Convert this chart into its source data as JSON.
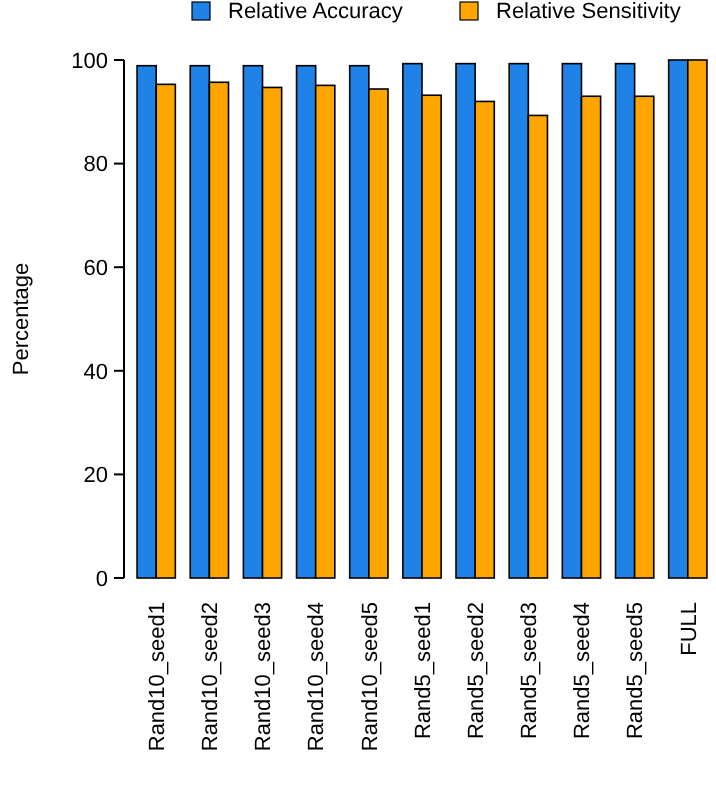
{
  "chart_data": {
    "type": "bar",
    "ylabel": "Percentage",
    "categories": [
      "Rand10_seed1",
      "Rand10_seed2",
      "Rand10_seed3",
      "Rand10_seed4",
      "Rand10_seed5",
      "Rand5_seed1",
      "Rand5_seed2",
      "Rand5_seed3",
      "Rand5_seed4",
      "Rand5_seed5",
      "FULL"
    ],
    "series": [
      {
        "name": "Relative Accuracy",
        "color": "#1e82e6",
        "values": [
          98.9,
          98.9,
          98.9,
          98.9,
          98.9,
          99.3,
          99.3,
          99.3,
          99.3,
          99.3,
          100
        ]
      },
      {
        "name": "Relative Sensitivity",
        "color": "#ffa500",
        "values": [
          95.3,
          95.7,
          94.7,
          95.1,
          94.4,
          93.2,
          92.0,
          89.3,
          93.0,
          93.0,
          100
        ]
      }
    ],
    "ylim": [
      0,
      100
    ],
    "yticks": [
      0,
      20,
      40,
      60,
      80,
      100
    ],
    "legend": "top",
    "grid": false
  }
}
